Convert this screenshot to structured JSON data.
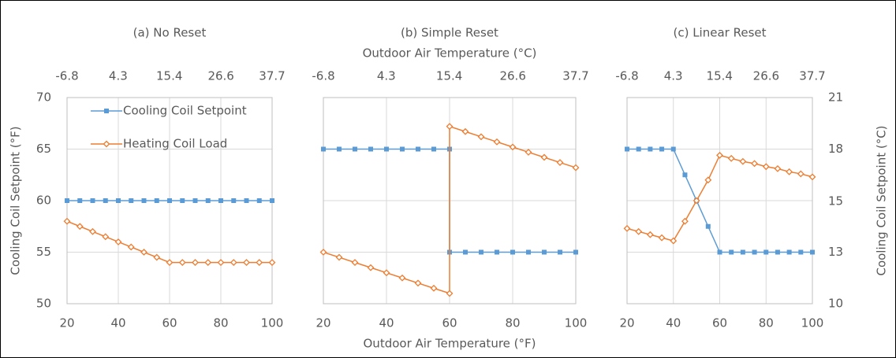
{
  "chart_data": [
    {
      "type": "line",
      "title": "(a) No Reset",
      "y_label": "Cooling Coil Setpoint (°F)",
      "legend": "upper left",
      "x": [
        20,
        25,
        30,
        35,
        40,
        45,
        50,
        55,
        60,
        65,
        70,
        75,
        80,
        85,
        90,
        95,
        100
      ],
      "series": [
        {
          "name": "Cooling Coil Setpoint",
          "color": "#5b9bd5",
          "marker": "square",
          "values": [
            60,
            60,
            60,
            60,
            60,
            60,
            60,
            60,
            60,
            60,
            60,
            60,
            60,
            60,
            60,
            60,
            60
          ]
        },
        {
          "name": "Heating Coil Load",
          "color": "#ed7d31",
          "marker": "diamond",
          "values": [
            58,
            57.5,
            57,
            56.5,
            56,
            55.5,
            55,
            54.5,
            54,
            54,
            54,
            54,
            54,
            54,
            54,
            54,
            54
          ]
        }
      ],
      "xlim": [
        20,
        100
      ],
      "xticks": [
        20,
        40,
        60,
        80,
        100
      ],
      "x2lim": [
        -6.8,
        37.7
      ],
      "x2ticks": [
        -6.8,
        4.3,
        15.4,
        26.6,
        37.7
      ],
      "ylim": [
        50,
        70
      ],
      "yticks": [
        50,
        55,
        60,
        65,
        70
      ],
      "grid": true
    },
    {
      "type": "line",
      "title": "(b) Simple Reset",
      "x_label": "Outdoor Air Temperature (°F)",
      "x2_label": "Outdoor Air Temperature (°C)",
      "x": [
        20,
        25,
        30,
        35,
        40,
        45,
        50,
        55,
        60,
        60,
        65,
        70,
        75,
        80,
        85,
        90,
        95,
        100
      ],
      "series": [
        {
          "color": "#5b9bd5",
          "marker": "square",
          "values": [
            65,
            65,
            65,
            65,
            65,
            65,
            65,
            65,
            65,
            55,
            55,
            55,
            55,
            55,
            55,
            55,
            55,
            55
          ]
        },
        {
          "color": "#ed7d31",
          "marker": "diamond",
          "values": [
            55,
            54.5,
            54,
            53.5,
            53,
            52.5,
            52,
            51.5,
            51,
            67.2,
            66.7,
            66.2,
            65.7,
            65.2,
            64.7,
            64.2,
            63.7,
            63.2
          ]
        }
      ],
      "xlim": [
        20,
        100
      ],
      "xticks": [
        20,
        40,
        60,
        80,
        100
      ],
      "x2lim": [
        -6.8,
        37.7
      ],
      "x2ticks": [
        -6.8,
        4.3,
        15.4,
        26.6,
        37.7
      ],
      "ylim": [
        50,
        70
      ],
      "yticks": [
        50,
        55,
        60,
        65,
        70
      ],
      "grid": true
    },
    {
      "type": "line",
      "title": "(c) Linear Reset",
      "y2_label": "Cooling Coil Setpoint (°C)",
      "x": [
        20,
        25,
        30,
        35,
        40,
        45,
        50,
        55,
        60,
        65,
        70,
        75,
        80,
        85,
        90,
        95,
        100
      ],
      "series": [
        {
          "color": "#5b9bd5",
          "marker": "square",
          "values": [
            65,
            65,
            65,
            65,
            65,
            62.5,
            60,
            57.5,
            55,
            55,
            55,
            55,
            55,
            55,
            55,
            55,
            55
          ]
        },
        {
          "color": "#ed7d31",
          "marker": "diamond",
          "values": [
            57.3,
            57,
            56.7,
            56.4,
            56.1,
            58,
            60,
            62,
            64.4,
            64.1,
            63.8,
            63.6,
            63.3,
            63.1,
            62.8,
            62.6,
            62.3
          ]
        }
      ],
      "xlim": [
        20,
        100
      ],
      "xticks": [
        20,
        40,
        60,
        80,
        100
      ],
      "x2lim": [
        -6.8,
        37.7
      ],
      "x2ticks": [
        -6.8,
        4.3,
        15.4,
        26.6,
        37.7
      ],
      "ylim": [
        50,
        70
      ],
      "yticks": [
        50,
        55,
        60,
        65,
        70
      ],
      "y2lim": [
        10,
        21
      ],
      "y2ticks": [
        10,
        {
          "value": 12.75,
          "label": "13"
        },
        {
          "value": 15.45,
          "label": "15"
        },
        {
          "value": 18.25,
          "label": "18"
        },
        21
      ],
      "grid": true
    }
  ]
}
